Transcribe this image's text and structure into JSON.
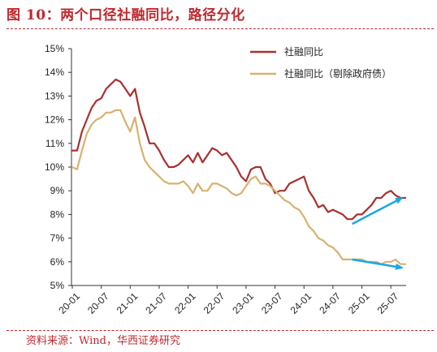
{
  "title": "图 10：两个口径社融同比，路径分化",
  "source": "资料来源：Wind，华西证券研究",
  "chart_data": {
    "type": "line",
    "title": "图 10：两个口径社融同比，路径分化",
    "xlabel": "",
    "ylabel": "",
    "ylim": [
      5,
      15
    ],
    "yticks": [
      5,
      6,
      7,
      8,
      9,
      10,
      11,
      12,
      13,
      14,
      15
    ],
    "ytick_labels": [
      "5%",
      "6%",
      "7%",
      "8%",
      "9%",
      "10%",
      "11%",
      "12%",
      "13%",
      "14%",
      "15%"
    ],
    "xtick_labels": [
      "20-01",
      "20-07",
      "21-01",
      "21-07",
      "22-01",
      "22-07",
      "23-01",
      "23-07",
      "24-01",
      "24-07",
      "25-01",
      "25-07"
    ],
    "legend_position": "top-right",
    "grid": false,
    "x": [
      "2020-01",
      "2020-02",
      "2020-03",
      "2020-04",
      "2020-05",
      "2020-06",
      "2020-07",
      "2020-08",
      "2020-09",
      "2020-10",
      "2020-11",
      "2020-12",
      "2021-01",
      "2021-02",
      "2021-03",
      "2021-04",
      "2021-05",
      "2021-06",
      "2021-07",
      "2021-08",
      "2021-09",
      "2021-10",
      "2021-11",
      "2021-12",
      "2022-01",
      "2022-02",
      "2022-03",
      "2022-04",
      "2022-05",
      "2022-06",
      "2022-07",
      "2022-08",
      "2022-09",
      "2022-10",
      "2022-11",
      "2022-12",
      "2023-01",
      "2023-02",
      "2023-03",
      "2023-04",
      "2023-05",
      "2023-06",
      "2023-07",
      "2023-08",
      "2023-09",
      "2023-10",
      "2023-11",
      "2023-12",
      "2024-01",
      "2024-02",
      "2024-03",
      "2024-04",
      "2024-05",
      "2024-06",
      "2024-07",
      "2024-08",
      "2024-09",
      "2024-10",
      "2024-11",
      "2024-12",
      "2025-01",
      "2025-02",
      "2025-03",
      "2025-04",
      "2025-05",
      "2025-06",
      "2025-07",
      "2025-08",
      "2025-09",
      "2025-10"
    ],
    "series": [
      {
        "name": "社融同比",
        "color": "#a8302e",
        "values": [
          10.7,
          10.7,
          11.5,
          12.0,
          12.5,
          12.8,
          12.9,
          13.3,
          13.5,
          13.7,
          13.6,
          13.3,
          13.0,
          13.3,
          12.3,
          11.7,
          11.0,
          11.0,
          10.7,
          10.3,
          10.0,
          10.0,
          10.1,
          10.3,
          10.5,
          10.2,
          10.6,
          10.2,
          10.5,
          10.8,
          10.7,
          10.5,
          10.6,
          10.3,
          10.0,
          9.6,
          9.4,
          9.9,
          10.0,
          10.0,
          9.5,
          9.3,
          8.9,
          9.0,
          9.0,
          9.3,
          9.4,
          9.5,
          9.6,
          9.0,
          8.7,
          8.3,
          8.4,
          8.1,
          8.2,
          8.1,
          8.0,
          7.8,
          7.8,
          8.0,
          8.0,
          8.2,
          8.4,
          8.7,
          8.7,
          8.9,
          9.0,
          8.8,
          8.7,
          8.7
        ]
      },
      {
        "name": "社融同比（剔除政府债）",
        "color": "#d7b26e",
        "values": [
          10.0,
          9.9,
          10.7,
          11.4,
          11.8,
          12.0,
          12.1,
          12.3,
          12.3,
          12.4,
          12.4,
          11.9,
          11.5,
          12.1,
          11.0,
          10.3,
          10.0,
          9.8,
          9.6,
          9.4,
          9.3,
          9.3,
          9.3,
          9.4,
          9.2,
          8.9,
          9.3,
          9.0,
          9.0,
          9.3,
          9.3,
          9.2,
          9.1,
          8.9,
          8.8,
          8.9,
          9.2,
          9.5,
          9.6,
          9.3,
          9.3,
          9.2,
          9.0,
          8.8,
          8.6,
          8.5,
          8.3,
          8.2,
          7.9,
          7.5,
          7.3,
          7.0,
          6.9,
          6.7,
          6.6,
          6.4,
          6.1,
          6.1,
          6.1,
          6.1,
          6.1,
          6.0,
          6.0,
          6.0,
          5.9,
          6.0,
          6.0,
          6.1,
          5.9,
          5.9
        ]
      }
    ],
    "arrows": [
      {
        "from": [
          "2024-12",
          7.6
        ],
        "to": [
          "2025-10",
          8.7
        ],
        "color": "#1aa7e6"
      },
      {
        "from": [
          "2024-12",
          6.1
        ],
        "to": [
          "2025-10",
          5.75
        ],
        "color": "#1aa7e6"
      }
    ]
  }
}
